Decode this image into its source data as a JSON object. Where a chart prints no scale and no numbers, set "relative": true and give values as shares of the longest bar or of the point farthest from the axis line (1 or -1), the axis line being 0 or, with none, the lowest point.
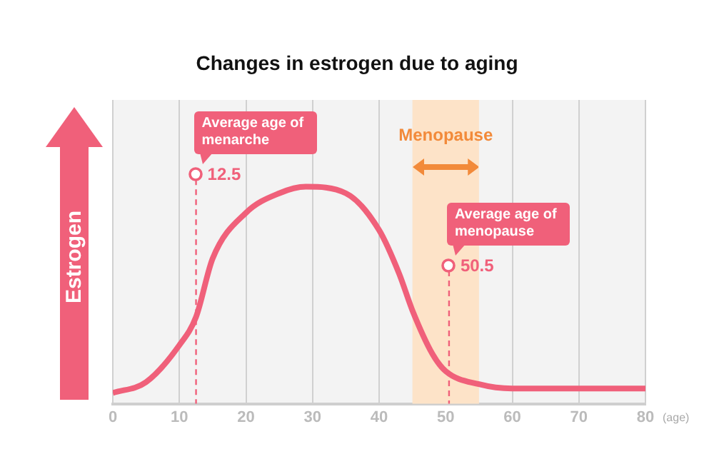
{
  "chart_data": {
    "type": "line",
    "title": "Changes in estrogen due to aging",
    "xlabel": "(age)",
    "ylabel": "Estrogen",
    "relative": true,
    "x": [
      0,
      5,
      10,
      12.5,
      15,
      20,
      25,
      29,
      35,
      40,
      43,
      45,
      48,
      50,
      55,
      60,
      70,
      80
    ],
    "series": [
      {
        "color": "#f0607a",
        "values": [
          0.05,
          0.1,
          0.27,
          0.4,
          0.67,
          0.88,
          0.97,
          1,
          0.97,
          0.8,
          0.6,
          0.43,
          0.23,
          0.15,
          0.09,
          0.07,
          0.07,
          0.07
        ]
      }
    ],
    "xlim": [
      0,
      80
    ],
    "xticks": [
      0,
      10,
      20,
      30,
      40,
      50,
      60,
      70,
      80
    ],
    "grid": "x",
    "marker": "none",
    "line_style": "solid",
    "ref_lines": [
      {
        "axis": "x",
        "value": 12.5,
        "label": "12.5",
        "color": "#f0607a",
        "line_style": "dashed"
      },
      {
        "axis": "x",
        "value": 50.5,
        "label": "50.5",
        "color": "#f0607a",
        "line_style": "dashed"
      }
    ],
    "bands": [
      {
        "axis": "x",
        "from": 45,
        "to": 55,
        "label": "Menopause",
        "color": "#fde3c8"
      }
    ],
    "annotations": [
      "Average age of menarche",
      "Average age of menopause"
    ]
  }
}
